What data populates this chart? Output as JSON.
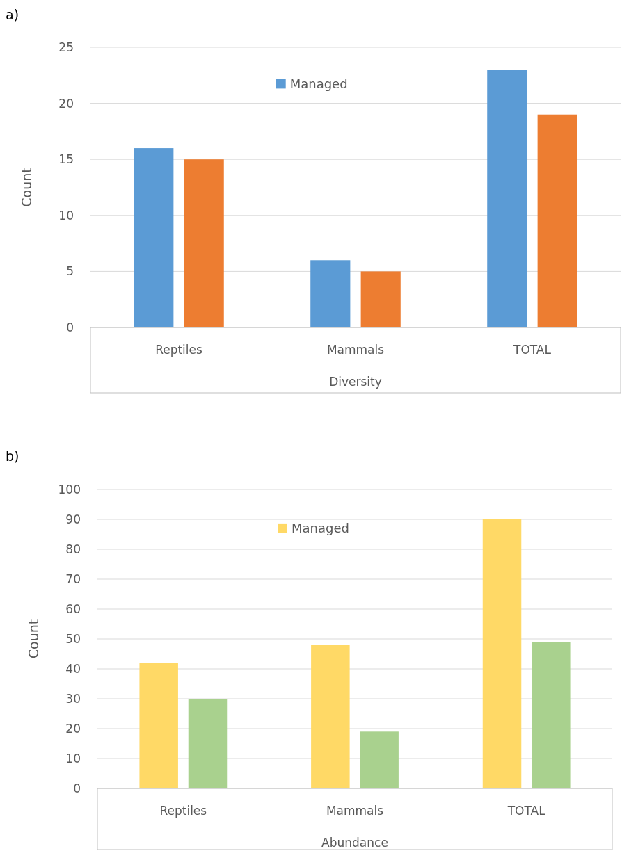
{
  "chart_data": [
    {
      "type": "bar",
      "title": "a)",
      "xlabel": "Diversity",
      "ylabel": "Count",
      "categories": [
        "Reptiles",
        "Mammals",
        "TOTAL"
      ],
      "series": [
        {
          "name": "Managed",
          "color": "#5b9bd5",
          "values": [
            16,
            6,
            23
          ]
        },
        {
          "color": "#ed7d31",
          "values": [
            15,
            5,
            19
          ]
        }
      ],
      "ylim": [
        0,
        25
      ],
      "yticks": [
        0,
        5,
        10,
        15,
        20,
        25
      ],
      "grid": "y",
      "legend": "top"
    },
    {
      "type": "bar",
      "title": "b)",
      "xlabel": "Abundance",
      "ylabel": "Count",
      "categories": [
        "Reptiles",
        "Mammals",
        "TOTAL"
      ],
      "series": [
        {
          "name": "Managed",
          "color": "#ffd966",
          "values": [
            42,
            48,
            90
          ]
        },
        {
          "color": "#a9d18e",
          "values": [
            30,
            19,
            49
          ]
        }
      ],
      "ylim": [
        0,
        100
      ],
      "yticks": [
        0,
        10,
        20,
        30,
        40,
        50,
        60,
        70,
        80,
        90,
        100
      ],
      "grid": "y",
      "legend": "top"
    }
  ]
}
